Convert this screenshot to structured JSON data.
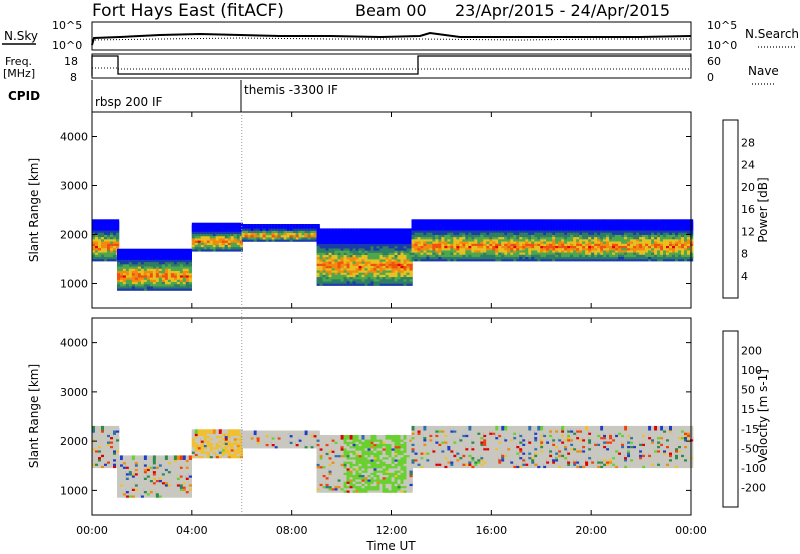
{
  "header": {
    "station": "Fort Hays East (fitACF)",
    "beam": "Beam 00",
    "date_range": "23/Apr/2015 - 24/Apr/2015"
  },
  "top_panels": {
    "nsky_label": "N.Sky",
    "nsky_ticks": [
      "10^5",
      "10^0"
    ],
    "nsearch_label": "N.Search",
    "nsearch_ticks": [
      "10^5",
      "10^0"
    ],
    "freq_label": "Freq.",
    "freq_unit": "[MHz]",
    "freq_ticks": [
      "18",
      "8"
    ],
    "nave_label": "Nave",
    "nave_ticks": [
      "60",
      "0"
    ],
    "cpid_label": "CPID",
    "cpid_segments": [
      {
        "name": "rbsp 200 IF",
        "start_hour": 0.0
      },
      {
        "name": "themis -3300 IF",
        "start_hour": 6.0
      }
    ]
  },
  "chart_data": [
    {
      "type": "heatmap",
      "name": "power",
      "ylabel": "Slant Range [km]",
      "yticks": [
        "1000",
        "2000",
        "3000",
        "4000"
      ],
      "ylim": [
        500,
        4500
      ],
      "xlim": [
        0,
        24
      ],
      "xticks": [
        "00:00",
        "04:00",
        "08:00",
        "12:00",
        "16:00",
        "20:00",
        "00:00"
      ],
      "colorbar": {
        "label": "Power [dB]",
        "ticks": [
          "4",
          "8",
          "12",
          "16",
          "20",
          "24",
          "28"
        ],
        "colors": [
          "#0000ff",
          "#1a3ca8",
          "#2e7d64",
          "#4da84d",
          "#e8c020",
          "#f08a10",
          "#f05010",
          "#e80000"
        ]
      },
      "bands": [
        {
          "hours": [
            0.0,
            1.0
          ],
          "ranges": [
            1500,
            2300
          ]
        },
        {
          "hours": [
            1.0,
            4.0
          ],
          "ranges": [
            900,
            1700
          ]
        },
        {
          "hours": [
            4.0,
            6.0
          ],
          "ranges": [
            1700,
            2200
          ]
        },
        {
          "hours": [
            6.0,
            9.0
          ],
          "ranges": [
            1900,
            2200
          ]
        },
        {
          "hours": [
            9.0,
            12.8
          ],
          "ranges": [
            1000,
            2100
          ]
        },
        {
          "hours": [
            12.8,
            24.0
          ],
          "ranges": [
            1500,
            2300
          ]
        }
      ]
    },
    {
      "type": "heatmap",
      "name": "velocity",
      "ylabel": "Slant Range [km]",
      "yticks": [
        "1000",
        "2000",
        "3000",
        "4000"
      ],
      "ylim": [
        500,
        4500
      ],
      "xlim": [
        0,
        24
      ],
      "xticks": [
        "00:00",
        "04:00",
        "08:00",
        "12:00",
        "16:00",
        "20:00",
        "00:00"
      ],
      "xlabel": "Time UT",
      "colorbar": {
        "label": "Velocity [m s-1]",
        "ticks": [
          "200",
          "100",
          "50",
          "15",
          "-15",
          "-50",
          "-100",
          "-200"
        ],
        "colors": [
          "#1e3cc8",
          "#2d6fae",
          "#2e8a4a",
          "#6ad030",
          "#c8c8c0",
          "#f0c030",
          "#f08a10",
          "#f04010",
          "#e00000"
        ]
      },
      "bands": [
        {
          "hours": [
            0.0,
            1.0
          ],
          "ranges": [
            1500,
            2300
          ]
        },
        {
          "hours": [
            1.0,
            4.0
          ],
          "ranges": [
            900,
            1700
          ]
        },
        {
          "hours": [
            4.0,
            6.0
          ],
          "ranges": [
            1700,
            2200
          ]
        },
        {
          "hours": [
            6.0,
            9.0
          ],
          "ranges": [
            1900,
            2200
          ]
        },
        {
          "hours": [
            9.0,
            12.8
          ],
          "ranges": [
            1000,
            2100
          ]
        },
        {
          "hours": [
            12.8,
            24.0
          ],
          "ranges": [
            1500,
            2300
          ]
        }
      ]
    }
  ]
}
